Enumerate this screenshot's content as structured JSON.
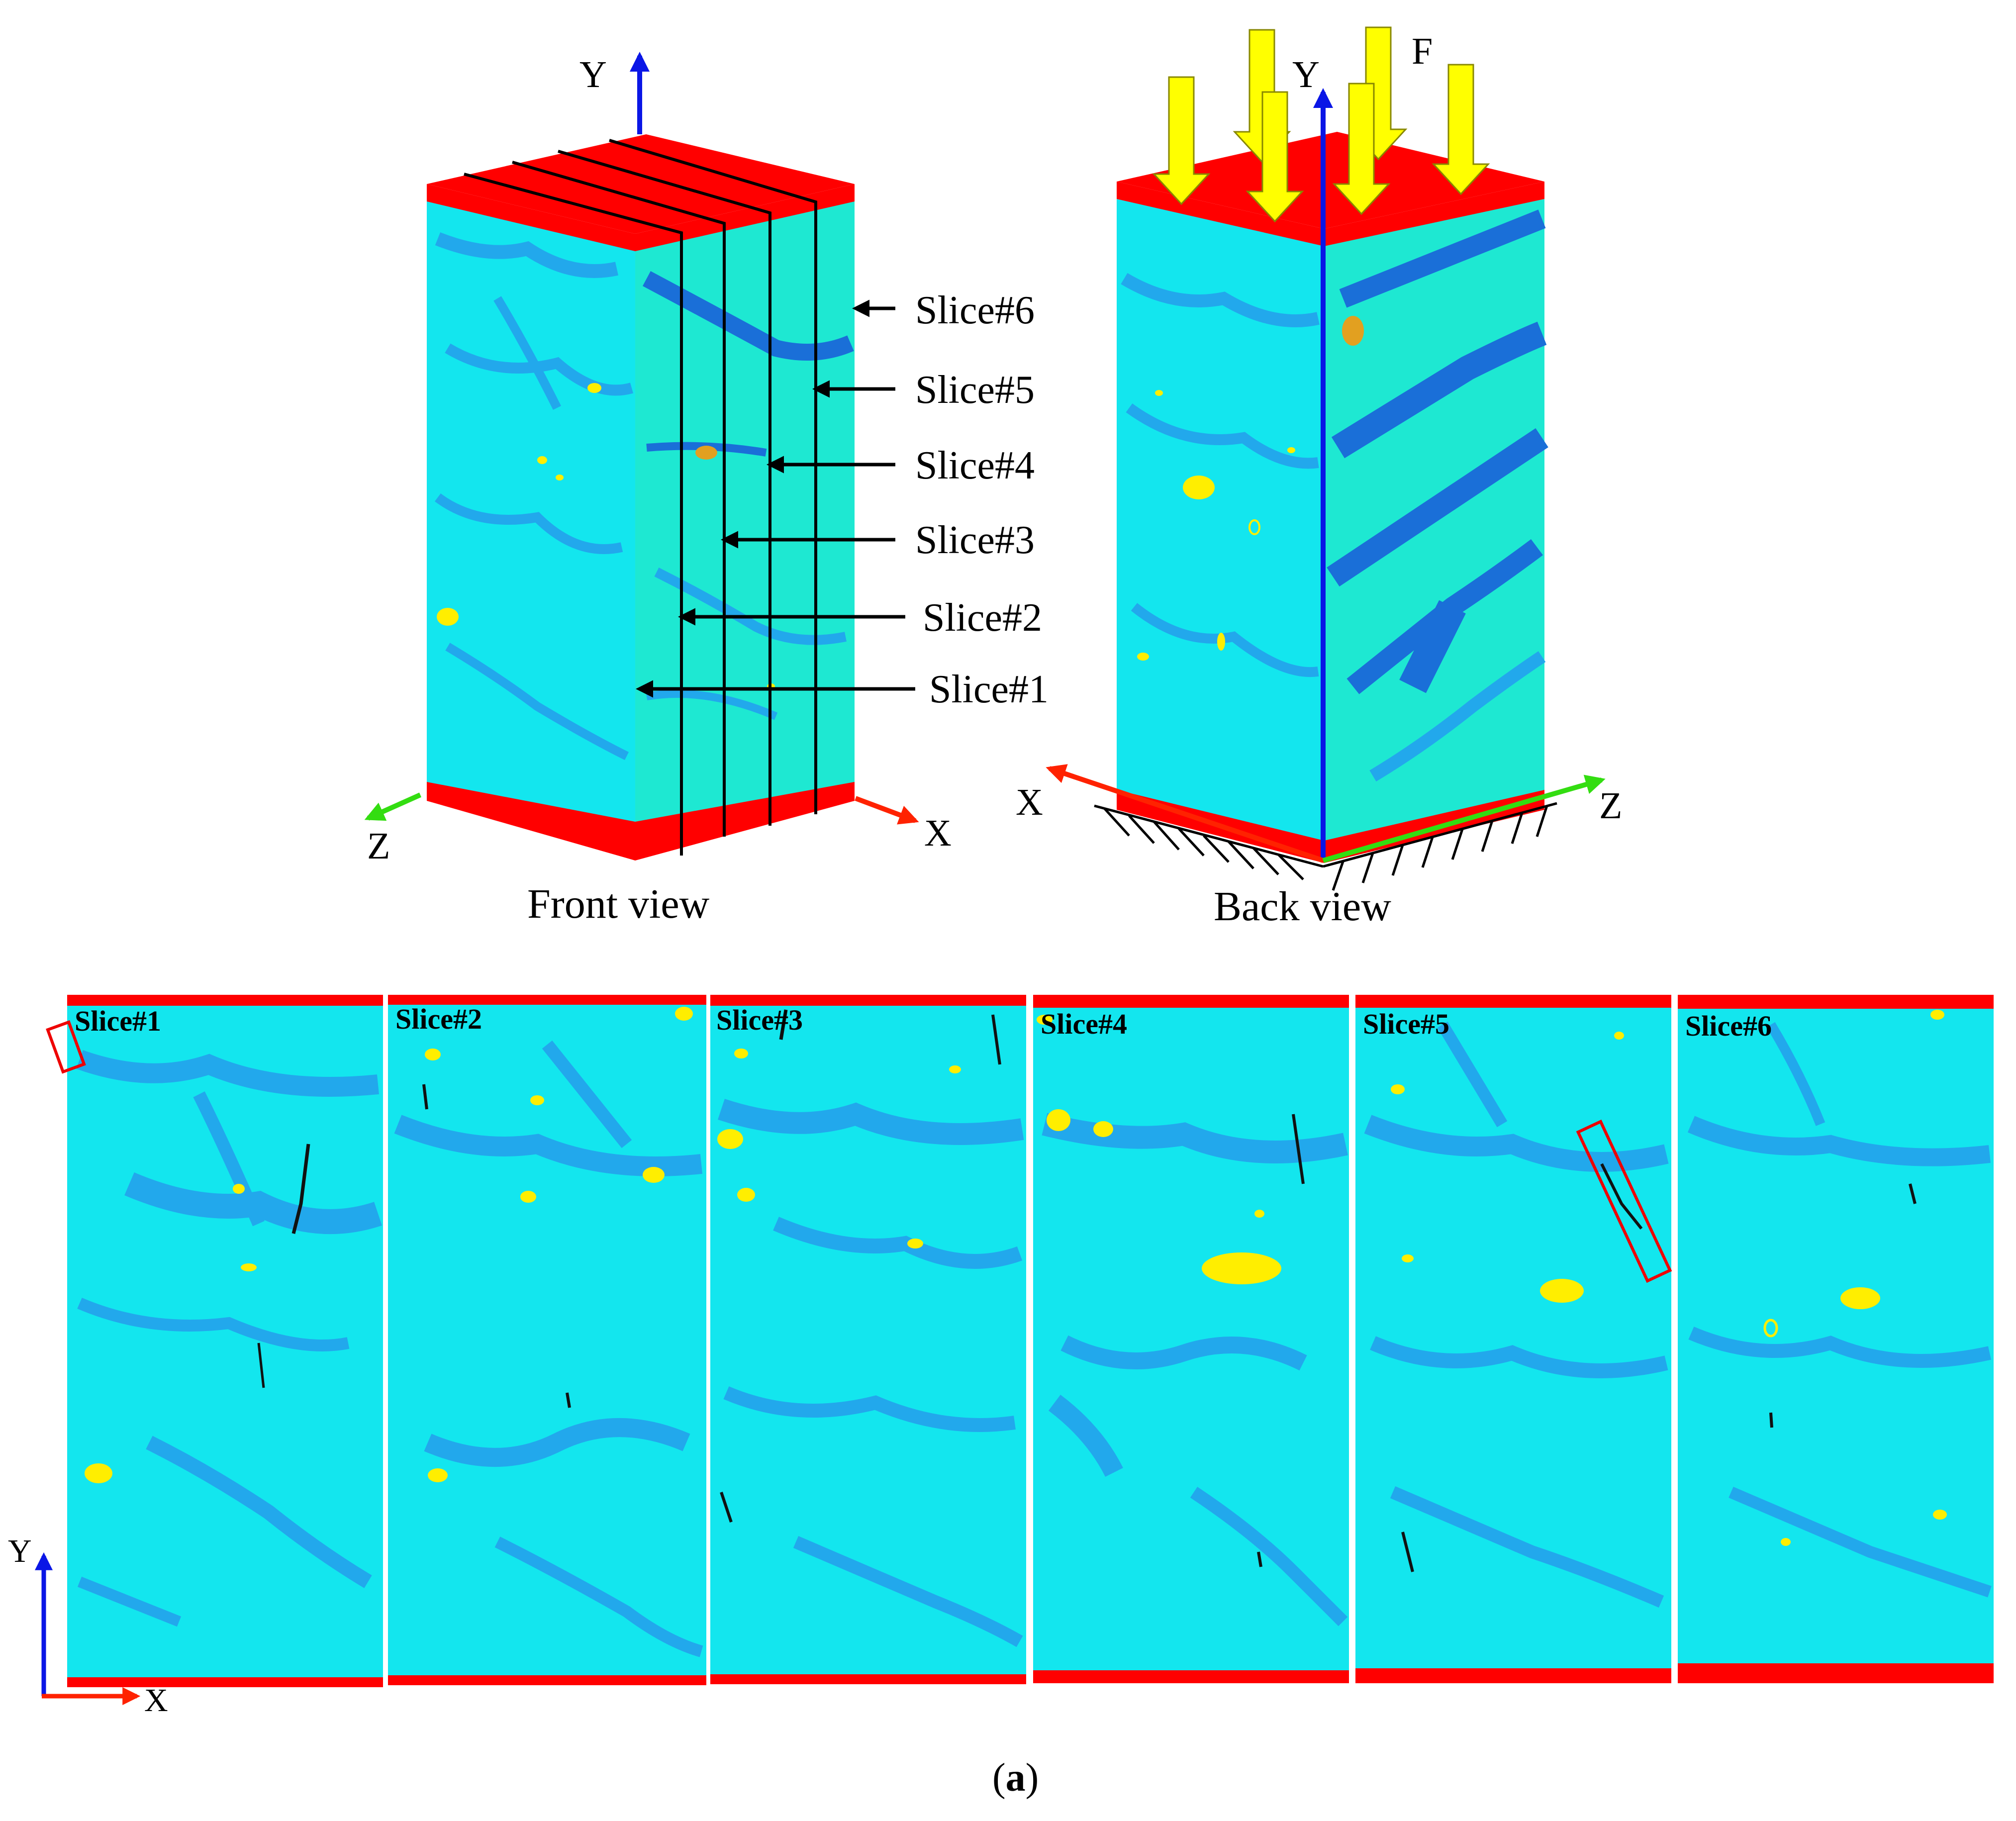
{
  "colors": {
    "matrix_cyan": "#13e6ee",
    "matrix_side": "#1ee8d2",
    "phase_blue": "#22a8ec",
    "dark_blue": "#1a6fd8",
    "inclusion_yellow": "#ffee00",
    "inclusion_orange": "#e2a020",
    "platen_red": "#ff0000",
    "crack_black": "#111111",
    "axis_x": "#ff2200",
    "axis_y": "#0a16e6",
    "axis_z": "#33dd11",
    "load_arrow": "#ffff00"
  },
  "front_view": {
    "caption": "Front view",
    "axes": {
      "x": "X",
      "y": "Y",
      "z": "Z"
    },
    "slice_labels": [
      "Slice#1",
      "Slice#2",
      "Slice#3",
      "Slice#4",
      "Slice#5",
      "Slice#6"
    ]
  },
  "back_view": {
    "caption": "Back view",
    "axes": {
      "x": "X",
      "y": "Y",
      "z": "Z"
    },
    "force_label": "F",
    "icons": [
      "load-arrow-icon",
      "fixed-support-hatch-icon"
    ]
  },
  "slices": {
    "titles": [
      "Slice#1",
      "Slice#2",
      "Slice#3",
      "Slice#4",
      "Slice#5",
      "Slice#6"
    ],
    "axes": {
      "x": "X",
      "y": "Y"
    }
  },
  "subfigure_label": {
    "open": "(",
    "letter": "a",
    "close": ")"
  }
}
